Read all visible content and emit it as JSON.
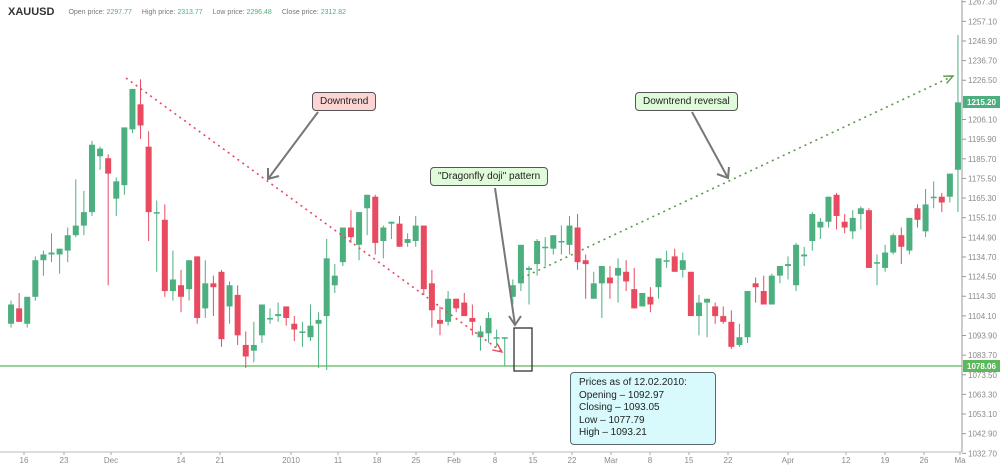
{
  "header": {
    "symbol": "XAUUSD",
    "open_label": "Open price:",
    "open_value": "2297.77",
    "high_label": "High price:",
    "high_value": "2313.77",
    "low_label": "Low price:",
    "low_value": "2296.48",
    "close_label": "Close price:",
    "close_value": "2312.82"
  },
  "annotations": {
    "downtrend": "Downtrend",
    "dragonfly": "\"Dragonfly doji\" pattern",
    "reversal": "Downtrend reversal",
    "info_title": "Prices as of 12.02.2010:",
    "info_open": "Opening – 1092.97",
    "info_close": "Closing – 1093.05",
    "info_low": "Low – 1077.79",
    "info_high": "High – 1093.21"
  },
  "colors": {
    "up": "#4caf80",
    "down": "#e84a5f",
    "support": "#5cb85c",
    "down_box": "#fdd4d4",
    "up_box": "#e0fbd9",
    "info_box": "#d9fafc"
  },
  "chart_data": {
    "type": "candlestick",
    "title": "XAUUSD",
    "xlabel": "",
    "ylabel": "Price",
    "ylim": [
      1032.7,
      1267.3
    ],
    "y_ticks": [
      "1267.30",
      "1257.10",
      "1246.90",
      "1236.70",
      "1226.50",
      "1215.20",
      "1206.10",
      "1195.90",
      "1185.70",
      "1175.50",
      "1165.30",
      "1155.10",
      "1144.90",
      "1134.70",
      "1124.50",
      "1114.30",
      "1104.10",
      "1093.90",
      "1083.70",
      "1078.06",
      "1073.50",
      "1063.30",
      "1053.10",
      "1042.90",
      "1032.70"
    ],
    "x_ticks": [
      {
        "label": "16",
        "x": 24
      },
      {
        "label": "23",
        "x": 64
      },
      {
        "label": "Dec",
        "x": 111
      },
      {
        "label": "14",
        "x": 181
      },
      {
        "label": "21",
        "x": 220
      },
      {
        "label": "2010",
        "x": 291
      },
      {
        "label": "11",
        "x": 338
      },
      {
        "label": "18",
        "x": 377
      },
      {
        "label": "25",
        "x": 416
      },
      {
        "label": "Feb",
        "x": 454
      },
      {
        "label": "8",
        "x": 495
      },
      {
        "label": "15",
        "x": 533
      },
      {
        "label": "22",
        "x": 572
      },
      {
        "label": "Mar",
        "x": 611
      },
      {
        "label": "8",
        "x": 650
      },
      {
        "label": "15",
        "x": 689
      },
      {
        "label": "22",
        "x": 728
      },
      {
        "label": "Apr",
        "x": 788
      },
      {
        "label": "12",
        "x": 846
      },
      {
        "label": "19",
        "x": 885
      },
      {
        "label": "26",
        "x": 924
      },
      {
        "label": "Ma",
        "x": 960
      }
    ],
    "current_price": "1215.20",
    "support_level": "1078.06",
    "candles": [
      [
        1100,
        1112,
        1098,
        1110
      ],
      [
        1108,
        1116,
        1101,
        1101
      ],
      [
        1100,
        1114,
        1098,
        1114
      ],
      [
        1114,
        1135,
        1112,
        1133
      ],
      [
        1133,
        1138,
        1125,
        1136
      ],
      [
        1136,
        1147,
        1132,
        1137
      ],
      [
        1136,
        1139,
        1126,
        1139
      ],
      [
        1138,
        1150,
        1132,
        1146
      ],
      [
        1146,
        1175,
        1145,
        1151
      ],
      [
        1151,
        1169,
        1146,
        1158
      ],
      [
        1158,
        1195,
        1156,
        1193
      ],
      [
        1187,
        1192,
        1180,
        1191
      ],
      [
        1186,
        1188,
        1120,
        1178
      ],
      [
        1165,
        1176,
        1156,
        1174
      ],
      [
        1172,
        1202,
        1167,
        1202
      ],
      [
        1201,
        1222,
        1199,
        1222
      ],
      [
        1214,
        1227,
        1196,
        1203
      ],
      [
        1192,
        1200,
        1143,
        1158
      ],
      [
        1158,
        1164,
        1127,
        1158
      ],
      [
        1154,
        1162,
        1114,
        1117
      ],
      [
        1117,
        1138,
        1112,
        1123
      ],
      [
        1120,
        1128,
        1106,
        1114
      ],
      [
        1118,
        1126,
        1112,
        1133
      ],
      [
        1135,
        1131,
        1100,
        1103
      ],
      [
        1108,
        1133,
        1103,
        1121
      ],
      [
        1121,
        1125,
        1104,
        1119
      ],
      [
        1127,
        1128,
        1088,
        1092
      ],
      [
        1109,
        1122,
        1100,
        1120
      ],
      [
        1115,
        1120,
        1089,
        1094
      ],
      [
        1089,
        1096,
        1077,
        1083
      ],
      [
        1086,
        1101,
        1080,
        1089
      ],
      [
        1094,
        1110,
        1090,
        1110
      ],
      [
        1103,
        1108,
        1100,
        1103
      ],
      [
        1104,
        1111,
        1101,
        1105
      ],
      [
        1109,
        1106,
        1099,
        1103
      ],
      [
        1100,
        1104,
        1091,
        1097
      ],
      [
        1096,
        1101,
        1088,
        1096
      ],
      [
        1093,
        1110,
        1091,
        1099
      ],
      [
        1100,
        1106,
        1077,
        1102
      ],
      [
        1104,
        1144,
        1076,
        1134
      ],
      [
        1120,
        1131,
        1116,
        1125
      ],
      [
        1132,
        1150,
        1130,
        1150
      ],
      [
        1150,
        1159,
        1142,
        1145
      ],
      [
        1141,
        1158,
        1133,
        1158
      ],
      [
        1160,
        1163,
        1146,
        1167
      ],
      [
        1166,
        1167,
        1136,
        1142
      ],
      [
        1143,
        1151,
        1134,
        1150
      ],
      [
        1152,
        1149,
        1144,
        1153
      ],
      [
        1152,
        1156,
        1140,
        1140
      ],
      [
        1142,
        1147,
        1140,
        1144
      ],
      [
        1143,
        1156,
        1140,
        1151
      ],
      [
        1151,
        1151,
        1115,
        1118
      ],
      [
        1121,
        1128,
        1098,
        1107
      ],
      [
        1102,
        1109,
        1094,
        1100
      ],
      [
        1101,
        1117,
        1099,
        1113
      ],
      [
        1113,
        1112,
        1106,
        1108
      ],
      [
        1111,
        1116,
        1104,
        1104
      ],
      [
        1103,
        1110,
        1094,
        1101
      ],
      [
        1093,
        1099,
        1086,
        1096
      ],
      [
        1095,
        1106,
        1090,
        1103
      ],
      [
        1093,
        1097,
        1088,
        1093
      ],
      [
        1093,
        1093,
        1078,
        1093
      ],
      [
        1114,
        1123,
        1110,
        1120
      ],
      [
        1121,
        1139,
        1117,
        1141
      ],
      [
        1128,
        1130,
        1110,
        1129
      ],
      [
        1131,
        1144,
        1125,
        1143
      ],
      [
        1140,
        1145,
        1130,
        1140
      ],
      [
        1139,
        1146,
        1136,
        1146
      ],
      [
        1143,
        1151,
        1136,
        1143
      ],
      [
        1141,
        1156,
        1136,
        1151
      ],
      [
        1150,
        1157,
        1128,
        1132
      ],
      [
        1133,
        1136,
        1113,
        1131
      ],
      [
        1113,
        1127,
        1120,
        1121
      ],
      [
        1121,
        1130,
        1103,
        1130
      ],
      [
        1124,
        1130,
        1113,
        1121
      ],
      [
        1125,
        1134,
        1111,
        1129
      ],
      [
        1127,
        1133,
        1117,
        1122
      ],
      [
        1118,
        1129,
        1109,
        1108
      ],
      [
        1109,
        1116,
        1109,
        1116
      ],
      [
        1114,
        1119,
        1106,
        1110
      ],
      [
        1119,
        1129,
        1113,
        1134
      ],
      [
        1133,
        1138,
        1129,
        1133
      ],
      [
        1135,
        1139,
        1127,
        1127
      ],
      [
        1128,
        1137,
        1124,
        1133
      ],
      [
        1127,
        1127,
        1104,
        1104
      ],
      [
        1104,
        1115,
        1094,
        1111
      ],
      [
        1111,
        1113,
        1093,
        1113
      ],
      [
        1109,
        1111,
        1100,
        1104
      ],
      [
        1104,
        1109,
        1100,
        1101
      ],
      [
        1101,
        1107,
        1087,
        1088
      ],
      [
        1089,
        1100,
        1088,
        1093
      ],
      [
        1093,
        1117,
        1090,
        1117
      ],
      [
        1121,
        1124,
        1111,
        1119
      ],
      [
        1117,
        1125,
        1110,
        1110
      ],
      [
        1110,
        1126,
        1110,
        1125
      ],
      [
        1125,
        1130,
        1121,
        1130
      ],
      [
        1130,
        1135,
        1123,
        1131
      ],
      [
        1120,
        1142,
        1117,
        1141
      ],
      [
        1135,
        1140,
        1130,
        1136
      ],
      [
        1143,
        1158,
        1138,
        1157
      ],
      [
        1150,
        1155,
        1144,
        1153
      ],
      [
        1153,
        1166,
        1150,
        1166
      ],
      [
        1167,
        1168,
        1149,
        1156
      ],
      [
        1153,
        1157,
        1147,
        1150
      ],
      [
        1148,
        1159,
        1144,
        1155
      ],
      [
        1157,
        1161,
        1149,
        1160
      ],
      [
        1159,
        1160,
        1129,
        1129
      ],
      [
        1132,
        1136,
        1120,
        1132
      ],
      [
        1129,
        1141,
        1127,
        1137
      ],
      [
        1137,
        1147,
        1136,
        1146
      ],
      [
        1146,
        1150,
        1131,
        1140
      ],
      [
        1138,
        1153,
        1136,
        1155
      ],
      [
        1160,
        1162,
        1150,
        1154
      ],
      [
        1148,
        1170,
        1145,
        1162
      ],
      [
        1166,
        1174,
        1160,
        1166
      ],
      [
        1166,
        1168,
        1158,
        1163
      ],
      [
        1166,
        1177,
        1163,
        1178
      ],
      [
        1180,
        1250,
        1158,
        1215
      ]
    ],
    "trendlines": [
      {
        "name": "downtrend",
        "from": [
          126,
          78
        ],
        "to": [
          502,
          352
        ],
        "color": "#e84a5f",
        "style": "dotted"
      },
      {
        "name": "reversal",
        "from": [
          522,
          278
        ],
        "to": [
          953,
          76
        ],
        "color": "#5a9a4a",
        "style": "dotted"
      }
    ]
  }
}
